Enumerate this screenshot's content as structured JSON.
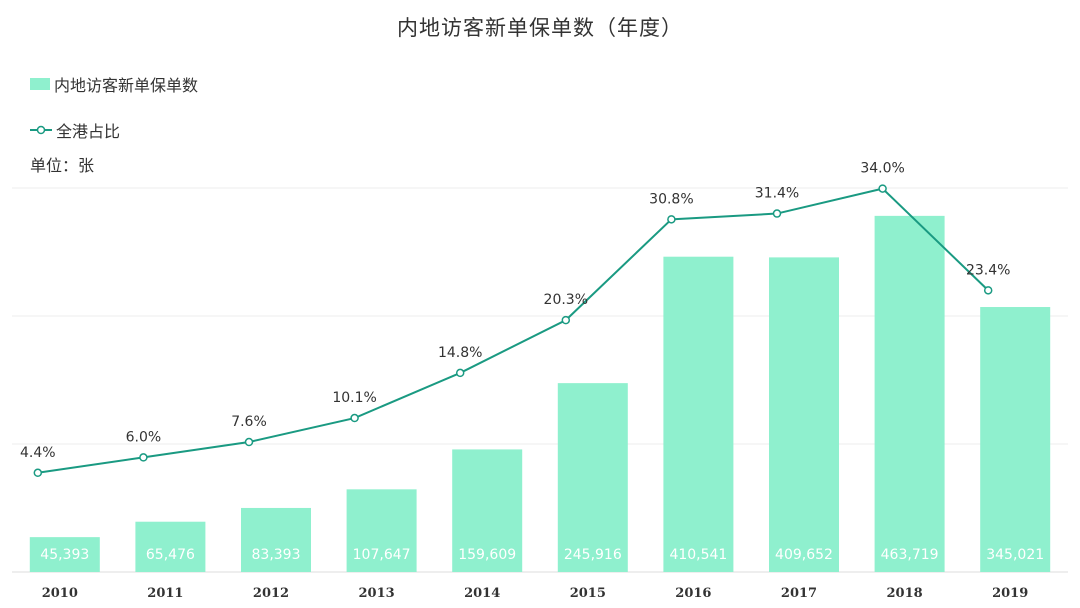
{
  "title": "内地访客新单保单数（年度）",
  "legend": {
    "bar_label": "内地访客新单保单数",
    "line_label": "全港占比"
  },
  "unit": "单位：张",
  "colors": {
    "bar": "#8ff0ce",
    "line": "#1a9a82",
    "grid": "#eeeeee"
  },
  "chart_data": {
    "type": "bar",
    "title": "内地访客新单保单数（年度）",
    "categories": [
      "2010",
      "2011",
      "2012",
      "2013",
      "2014",
      "2015",
      "2016",
      "2017",
      "2018",
      "2019"
    ],
    "series": [
      {
        "name": "内地访客新单保单数",
        "type": "bar",
        "values": [
          45393,
          65476,
          83393,
          107647,
          159609,
          245916,
          410541,
          409652,
          463719,
          345021
        ],
        "labels": [
          "45,393",
          "65,476",
          "83,393",
          "107,647",
          "159,609",
          "245,916",
          "410,541",
          "409,652",
          "463,719",
          "345,021"
        ]
      },
      {
        "name": "全港占比",
        "type": "line",
        "values": [
          4.4,
          6.0,
          7.6,
          10.1,
          14.8,
          20.3,
          30.8,
          31.4,
          34.0,
          23.4
        ],
        "labels": [
          "4.4%",
          "6.0%",
          "7.6%",
          "10.1%",
          "14.8%",
          "20.3%",
          "30.8%",
          "31.4%",
          "34.0%",
          "23.4%"
        ]
      }
    ],
    "ylim_bar": [
      0,
      500000
    ],
    "ylim_line": [
      0,
      40
    ],
    "grid": true,
    "legend_position": "top-left"
  }
}
